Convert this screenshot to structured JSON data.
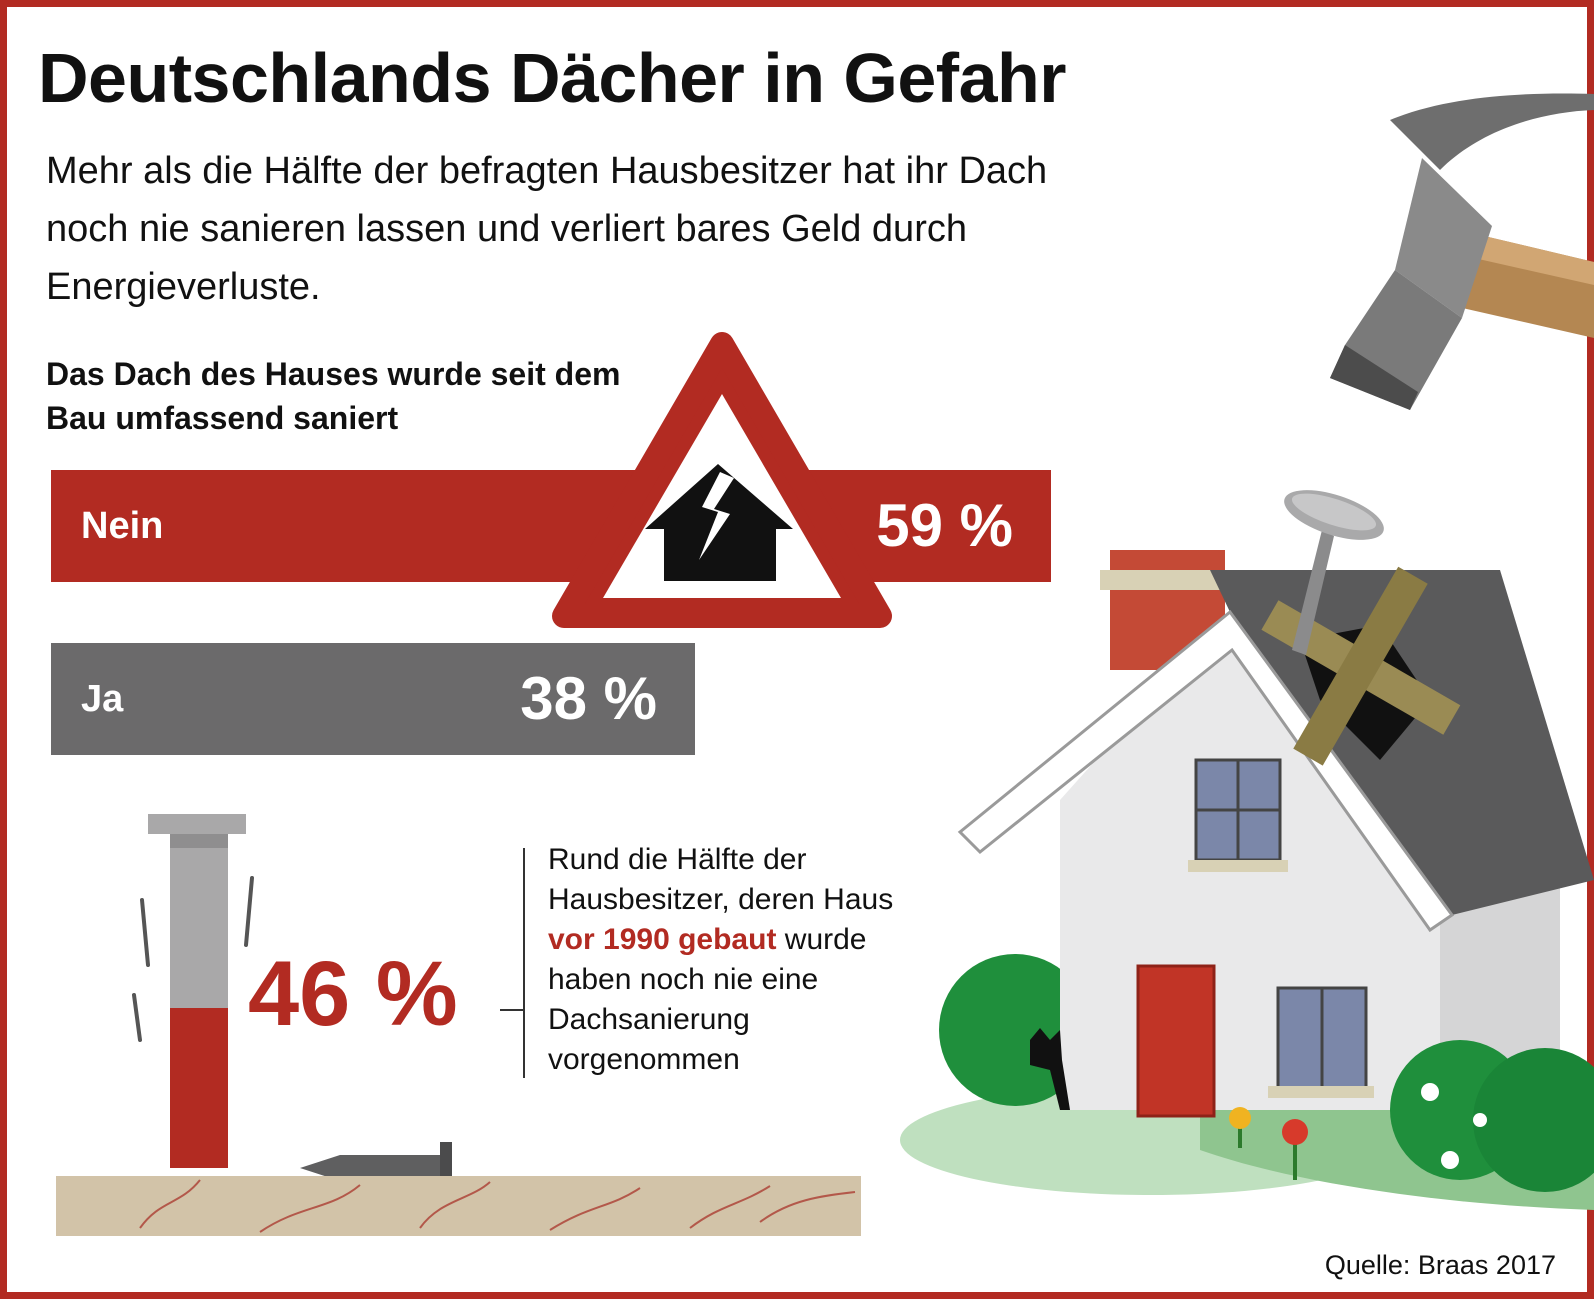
{
  "title": "Deutschlands Dächer in Gefahr",
  "intro": "Mehr als die Hälfte der befragten Hausbesitzer hat ihr Dach noch nie sanieren lassen und verliert bares Geld durch Energieverluste.",
  "chart_data": [
    {
      "type": "bar",
      "title": "Das Dach des Hauses wurde seit dem Bau umfassend saniert",
      "categories": [
        "Nein",
        "Ja"
      ],
      "values": [
        59,
        38
      ],
      "value_labels": [
        "59 %",
        "38 %"
      ],
      "unit": "%",
      "orientation": "horizontal",
      "colors": [
        "#b22b22",
        "#6b6a6b"
      ]
    },
    {
      "type": "bar",
      "values": [
        46
      ],
      "value_labels": [
        "46 %"
      ],
      "unit": "%",
      "colors": [
        "#b22b22",
        "#a9a8a9"
      ]
    }
  ],
  "note": {
    "part1": "Rund die Hälfte der Hausbesitzer, deren Haus ",
    "highlight": "vor 1990 gebaut",
    "part2": " wurde haben noch nie eine Dachsanierung vorgenommen"
  },
  "source": "Quelle: Braas 2017",
  "colors": {
    "accent_red": "#b22b22",
    "bar_gray": "#6b6a6b",
    "wood": "#d2c3a8",
    "lawn": "#8fc58f",
    "bush": "#1f8f3c"
  },
  "icons": [
    "warning-triangle-icon",
    "broken-house-icon",
    "hammer-icon",
    "nail-icon",
    "house-illustration",
    "cat-icon",
    "flower-icon"
  ]
}
